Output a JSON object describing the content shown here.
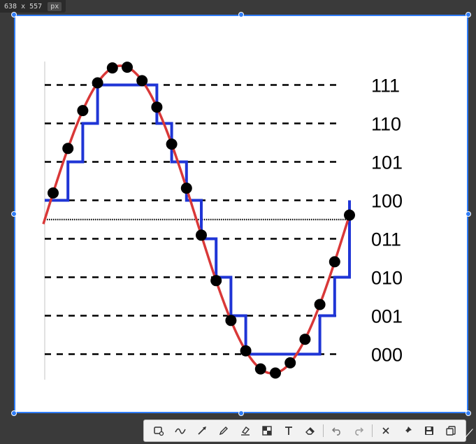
{
  "capture": {
    "dimensions_label": "638 x 557",
    "unit_label": "px"
  },
  "chart_data": {
    "type": "line",
    "levels": [
      "111",
      "110",
      "101",
      "100",
      "011",
      "010",
      "001",
      "000"
    ],
    "series": [
      {
        "kind": "analog",
        "color": "#d93838"
      },
      {
        "kind": "quantized",
        "color": "#1f35d6"
      },
      {
        "kind": "samples",
        "color": "#000000"
      }
    ],
    "grid": "dashed-level-lines",
    "zero_line": "dotted"
  },
  "toolbar": {
    "tools": [
      {
        "name": "rectangle-tool-icon"
      },
      {
        "name": "freehand-line-icon"
      },
      {
        "name": "arrow-tool-icon"
      },
      {
        "name": "pen-tool-icon"
      },
      {
        "name": "marker-tool-icon"
      },
      {
        "name": "mosaic-tool-icon"
      },
      {
        "name": "text-tool-icon"
      },
      {
        "name": "eraser-tool-icon"
      },
      {
        "name": "undo-icon"
      },
      {
        "name": "redo-icon"
      },
      {
        "name": "close-icon"
      },
      {
        "name": "pin-icon"
      },
      {
        "name": "save-icon"
      },
      {
        "name": "copy-icon"
      }
    ]
  }
}
